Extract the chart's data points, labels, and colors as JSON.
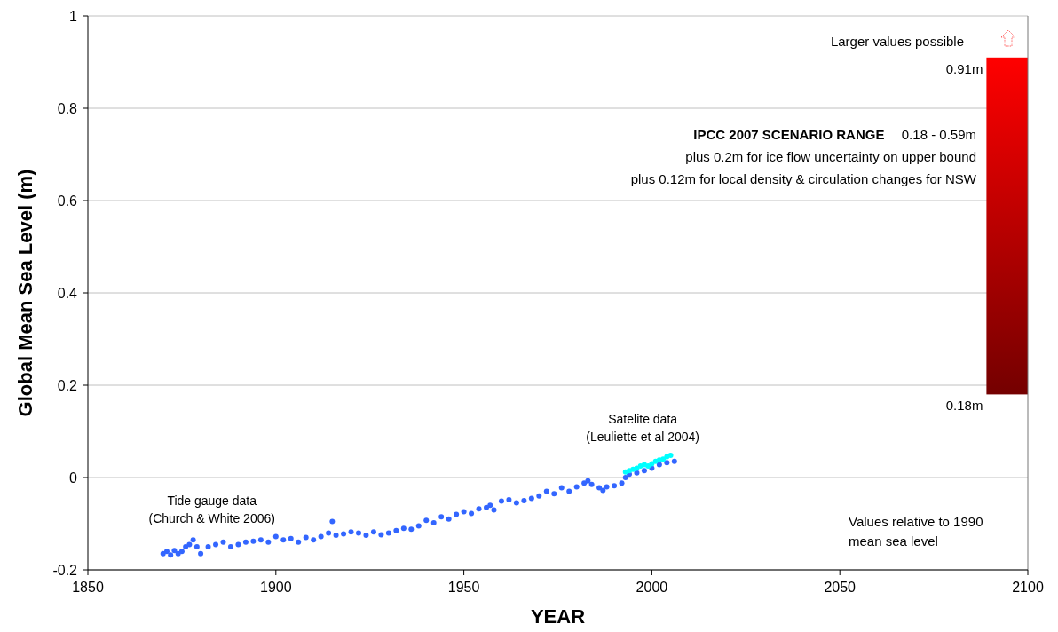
{
  "chart_data": {
    "type": "scatter",
    "xlabel": "YEAR",
    "ylabel": "Global Mean Sea Level (m)",
    "xlim": [
      1850,
      2100
    ],
    "xticks": [
      1850,
      1900,
      1950,
      2000,
      2050,
      2100
    ],
    "ylim": [
      -0.2,
      1
    ],
    "yticks": [
      -0.2,
      0,
      0.2,
      0.4,
      0.6,
      0.8,
      1
    ],
    "grid": "y",
    "legend": false,
    "marker": "circle",
    "series": [
      {
        "name": "Tide gauge data (Church & White 2006)",
        "type": "scatter",
        "color": "#3366ff",
        "x": [
          1870,
          1871,
          1872,
          1873,
          1874,
          1875,
          1876,
          1877,
          1878,
          1879,
          1880,
          1882,
          1884,
          1886,
          1888,
          1890,
          1892,
          1894,
          1896,
          1898,
          1900,
          1902,
          1904,
          1906,
          1908,
          1910,
          1912,
          1914,
          1915,
          1916,
          1918,
          1920,
          1922,
          1924,
          1926,
          1928,
          1930,
          1932,
          1934,
          1936,
          1938,
          1940,
          1942,
          1944,
          1946,
          1948,
          1950,
          1952,
          1954,
          1956,
          1957,
          1958,
          1960,
          1962,
          1964,
          1966,
          1968,
          1970,
          1972,
          1974,
          1976,
          1978,
          1980,
          1982,
          1983,
          1984,
          1986,
          1987,
          1988,
          1990,
          1992,
          1993,
          1994,
          1996,
          1998,
          2000,
          2002,
          2004,
          2006
        ],
        "values": [
          -0.165,
          -0.16,
          -0.168,
          -0.158,
          -0.165,
          -0.16,
          -0.15,
          -0.145,
          -0.135,
          -0.15,
          -0.165,
          -0.15,
          -0.145,
          -0.14,
          -0.15,
          -0.145,
          -0.14,
          -0.138,
          -0.135,
          -0.14,
          -0.128,
          -0.135,
          -0.132,
          -0.14,
          -0.13,
          -0.135,
          -0.128,
          -0.12,
          -0.095,
          -0.125,
          -0.122,
          -0.118,
          -0.12,
          -0.125,
          -0.118,
          -0.124,
          -0.12,
          -0.115,
          -0.11,
          -0.112,
          -0.105,
          -0.093,
          -0.098,
          -0.085,
          -0.09,
          -0.08,
          -0.074,
          -0.078,
          -0.068,
          -0.065,
          -0.06,
          -0.07,
          -0.051,
          -0.048,
          -0.055,
          -0.05,
          -0.045,
          -0.04,
          -0.03,
          -0.035,
          -0.022,
          -0.03,
          -0.02,
          -0.012,
          -0.007,
          -0.015,
          -0.022,
          -0.028,
          -0.02,
          -0.018,
          -0.012,
          0.0,
          0.007,
          0.01,
          0.015,
          0.02,
          0.028,
          0.032,
          0.035
        ]
      },
      {
        "name": "Satelite data (Leuliette et al 2004)",
        "type": "scatter",
        "color": "#00ffff",
        "x": [
          1993,
          1994,
          1995,
          1996,
          1997,
          1998,
          1999,
          2000,
          2001,
          2002,
          2003,
          2004,
          2005
        ],
        "values": [
          0.012,
          0.015,
          0.018,
          0.02,
          0.025,
          0.028,
          0.025,
          0.03,
          0.035,
          0.038,
          0.04,
          0.045,
          0.048
        ]
      },
      {
        "type": "bar",
        "color": "#ff0000",
        "x": [
          2094.5
        ],
        "base": [
          0.18
        ],
        "values": [
          0.73
        ]
      }
    ],
    "annotations": [
      "Larger values possible",
      {
        "text": "0.91m",
        "x": 2089,
        "y": 0.91
      },
      "IPCC 2007 SCENARIO RANGE",
      "0.18 - 0.59m",
      "plus 0.2m for ice flow uncertainty on upper bound",
      "plus 0.12m for local density & circulation changes for NSW",
      {
        "text": "0.18m",
        "x": 2089,
        "y": 0.18
      },
      "Values relative to 1990 mean sea level"
    ]
  }
}
